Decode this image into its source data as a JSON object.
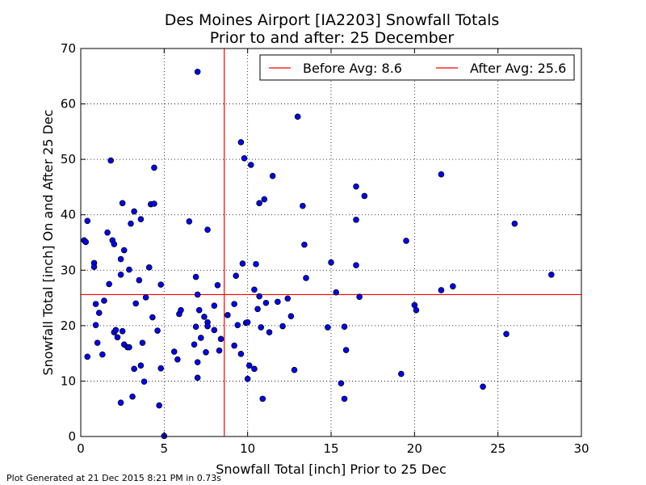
{
  "footnote": "Plot Generated at 21 Dec 2015 8:21 PM in 0.73s",
  "chart_data": {
    "type": "scatter",
    "title": "Des Moines Airport [IA2203] Snowfall Totals",
    "subtitle": "Prior to and after: 25 December",
    "xlabel": "Snowfall Total [inch] Prior to 25 Dec",
    "ylabel": "Snowfall Total [inch] On and After 25 Dec",
    "xlim": [
      0,
      30
    ],
    "ylim": [
      0,
      70
    ],
    "xticks": [
      "0",
      "5",
      "10",
      "15",
      "20",
      "25",
      "30"
    ],
    "yticks": [
      "0",
      "10",
      "20",
      "30",
      "40",
      "50",
      "60",
      "70"
    ],
    "grid": true,
    "legend_position": "top-right",
    "marker_color": "#0000ff",
    "reference_line_color": "#ff0000",
    "reference_lines": [
      {
        "label": "Before Avg: 8.6",
        "orientation": "vertical",
        "value": 8.6
      },
      {
        "label": "After Avg: 25.6",
        "orientation": "horizontal",
        "value": 25.6
      }
    ],
    "points": [
      [
        0.2,
        35.4
      ],
      [
        0.3,
        35.1
      ],
      [
        0.4,
        14.4
      ],
      [
        0.4,
        38.9
      ],
      [
        0.8,
        31.3
      ],
      [
        0.8,
        30.6
      ],
      [
        0.9,
        23.9
      ],
      [
        0.9,
        20.1
      ],
      [
        1.0,
        16.9
      ],
      [
        1.1,
        22.3
      ],
      [
        1.3,
        14.8
      ],
      [
        1.4,
        24.5
      ],
      [
        1.6,
        36.8
      ],
      [
        1.7,
        27.5
      ],
      [
        1.8,
        49.8
      ],
      [
        1.9,
        35.4
      ],
      [
        2.0,
        34.7
      ],
      [
        2.0,
        18.8
      ],
      [
        2.1,
        19.2
      ],
      [
        2.2,
        17.9
      ],
      [
        2.4,
        6.1
      ],
      [
        2.4,
        32.0
      ],
      [
        2.4,
        29.2
      ],
      [
        2.5,
        42.1
      ],
      [
        2.5,
        19.0
      ],
      [
        2.6,
        33.6
      ],
      [
        2.6,
        16.6
      ],
      [
        2.8,
        16.1
      ],
      [
        2.9,
        16.1
      ],
      [
        2.9,
        30.1
      ],
      [
        3.0,
        38.4
      ],
      [
        3.1,
        7.2
      ],
      [
        3.2,
        40.6
      ],
      [
        3.2,
        12.2
      ],
      [
        3.3,
        24.0
      ],
      [
        3.5,
        28.2
      ],
      [
        3.6,
        39.2
      ],
      [
        3.6,
        12.8
      ],
      [
        3.7,
        16.9
      ],
      [
        3.8,
        9.9
      ],
      [
        3.9,
        25.1
      ],
      [
        4.1,
        30.5
      ],
      [
        4.2,
        41.9
      ],
      [
        4.3,
        21.5
      ],
      [
        4.4,
        42.0
      ],
      [
        4.4,
        48.5
      ],
      [
        4.6,
        19.1
      ],
      [
        4.7,
        5.6
      ],
      [
        4.8,
        27.4
      ],
      [
        4.8,
        12.3
      ],
      [
        5.0,
        0.1
      ],
      [
        5.6,
        15.3
      ],
      [
        5.8,
        13.9
      ],
      [
        5.9,
        22.1
      ],
      [
        6.0,
        22.8
      ],
      [
        6.5,
        38.8
      ],
      [
        6.8,
        16.6
      ],
      [
        6.9,
        28.8
      ],
      [
        6.9,
        19.8
      ],
      [
        7.0,
        65.8
      ],
      [
        7.0,
        25.6
      ],
      [
        7.0,
        13.4
      ],
      [
        7.0,
        10.6
      ],
      [
        7.1,
        22.8
      ],
      [
        7.2,
        17.8
      ],
      [
        7.4,
        21.6
      ],
      [
        7.5,
        15.2
      ],
      [
        7.6,
        37.3
      ],
      [
        7.6,
        20.6
      ],
      [
        7.6,
        19.9
      ],
      [
        8.0,
        23.6
      ],
      [
        8.0,
        19.2
      ],
      [
        8.2,
        27.3
      ],
      [
        8.3,
        15.5
      ],
      [
        8.4,
        17.6
      ],
      [
        8.8,
        21.9
      ],
      [
        9.2,
        23.9
      ],
      [
        9.2,
        16.4
      ],
      [
        9.3,
        29.0
      ],
      [
        9.4,
        20.1
      ],
      [
        9.6,
        14.9
      ],
      [
        9.6,
        53.1
      ],
      [
        9.7,
        31.2
      ],
      [
        9.8,
        50.2
      ],
      [
        9.9,
        20.5
      ],
      [
        10.0,
        10.4
      ],
      [
        10.0,
        20.6
      ],
      [
        10.1,
        12.8
      ],
      [
        10.2,
        49.0
      ],
      [
        10.4,
        26.5
      ],
      [
        10.4,
        12.2
      ],
      [
        10.5,
        31.1
      ],
      [
        10.6,
        23.0
      ],
      [
        10.7,
        42.1
      ],
      [
        10.7,
        25.3
      ],
      [
        10.8,
        19.7
      ],
      [
        10.9,
        6.8
      ],
      [
        11.0,
        42.8
      ],
      [
        11.1,
        24.1
      ],
      [
        11.3,
        18.8
      ],
      [
        11.5,
        47.0
      ],
      [
        11.8,
        24.3
      ],
      [
        12.1,
        19.9
      ],
      [
        12.4,
        24.9
      ],
      [
        12.6,
        21.7
      ],
      [
        12.8,
        12.0
      ],
      [
        13.0,
        57.7
      ],
      [
        13.3,
        41.6
      ],
      [
        13.4,
        34.6
      ],
      [
        13.5,
        28.6
      ],
      [
        14.8,
        19.7
      ],
      [
        15.0,
        31.4
      ],
      [
        15.3,
        26.0
      ],
      [
        15.6,
        9.6
      ],
      [
        15.8,
        6.8
      ],
      [
        15.8,
        19.8
      ],
      [
        15.9,
        15.6
      ],
      [
        16.5,
        45.1
      ],
      [
        16.5,
        39.1
      ],
      [
        16.5,
        30.9
      ],
      [
        16.7,
        25.2
      ],
      [
        17.0,
        43.4
      ],
      [
        19.2,
        11.3
      ],
      [
        19.5,
        35.3
      ],
      [
        20.0,
        23.7
      ],
      [
        20.1,
        22.8
      ],
      [
        21.6,
        47.3
      ],
      [
        21.6,
        26.4
      ],
      [
        22.3,
        27.1
      ],
      [
        24.1,
        9.0
      ],
      [
        25.5,
        18.5
      ],
      [
        26.0,
        38.4
      ],
      [
        28.2,
        29.2
      ]
    ]
  }
}
